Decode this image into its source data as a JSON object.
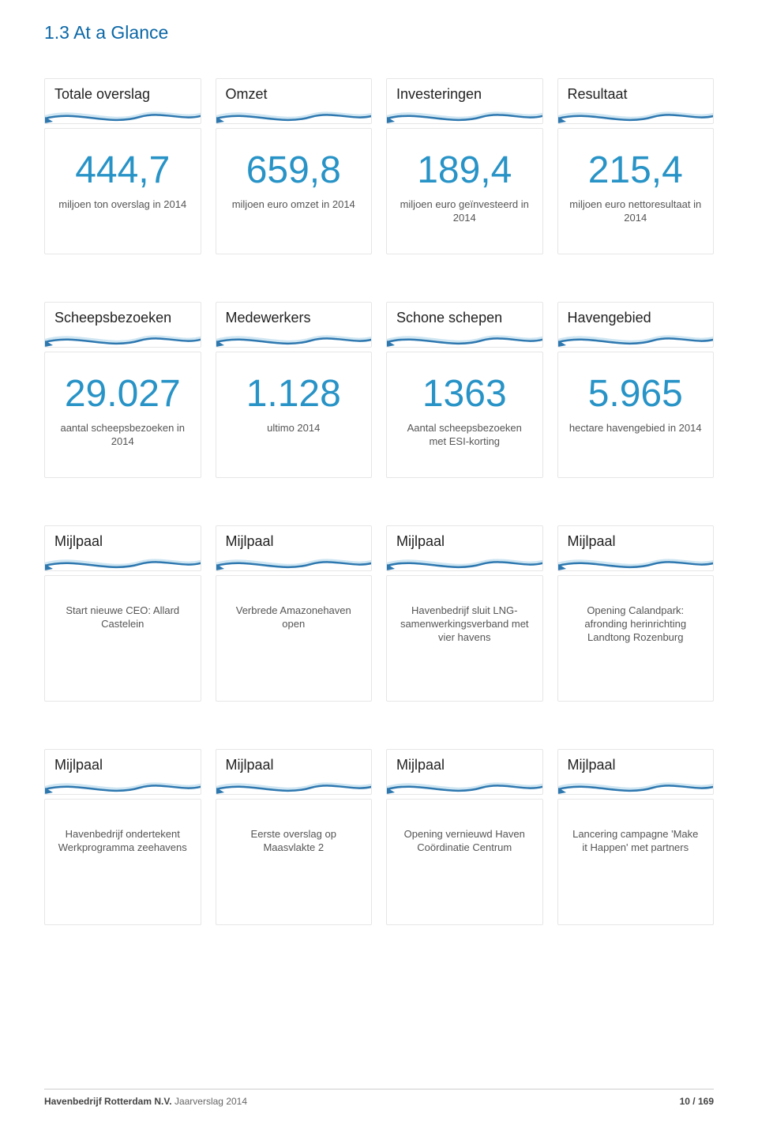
{
  "colors": {
    "accent": "#2893c6",
    "heading": "#0b67a6",
    "wave_dark": "#2e78b0",
    "wave_light": "#cfe6f2",
    "border": "#e6e6e6",
    "text": "#555555"
  },
  "section_title": "1.3  At a Glance",
  "rows": [
    [
      {
        "title": "Totale overslag",
        "value": "444,7",
        "desc": "miljoen ton overslag in 2014"
      },
      {
        "title": "Omzet",
        "value": "659,8",
        "desc": "miljoen euro omzet in 2014"
      },
      {
        "title": "Investeringen",
        "value": "189,4",
        "desc": "miljoen euro geïnvesteerd in 2014"
      },
      {
        "title": "Resultaat",
        "value": "215,4",
        "desc": "miljoen euro nettoresultaat in 2014"
      }
    ],
    [
      {
        "title": "Scheepsbezoeken",
        "value": "29.027",
        "desc": "aantal scheepsbezoeken in 2014"
      },
      {
        "title": "Medewerkers",
        "value": "1.128",
        "desc": "ultimo 2014"
      },
      {
        "title": "Schone schepen",
        "value": "1363",
        "desc": "Aantal scheepsbezoeken met ESI-korting"
      },
      {
        "title": "Havengebied",
        "value": "5.965",
        "desc": "hectare havengebied in 2014"
      }
    ],
    [
      {
        "title": "Mijlpaal",
        "desc": "Start nieuwe CEO: Allard Castelein"
      },
      {
        "title": "Mijlpaal",
        "desc": "Verbrede Amazonehaven open"
      },
      {
        "title": "Mijlpaal",
        "desc": "Havenbedrijf sluit LNG-samenwerkingsverband met vier havens"
      },
      {
        "title": "Mijlpaal",
        "desc": "Opening Calandpark: afronding herinrichting Landtong Rozenburg"
      }
    ],
    [
      {
        "title": "Mijlpaal",
        "desc": "Havenbedrijf ondertekent Werkprogramma zeehavens"
      },
      {
        "title": "Mijlpaal",
        "desc": "Eerste overslag op Maasvlakte 2"
      },
      {
        "title": "Mijlpaal",
        "desc": "Opening vernieuwd Haven Coördinatie Centrum"
      },
      {
        "title": "Mijlpaal",
        "desc": "Lancering campagne 'Make it Happen' met partners"
      }
    ]
  ],
  "footer": {
    "company": "Havenbedrijf Rotterdam N.V.",
    "report": "Jaarverslag 2014",
    "page": "10 / 169"
  }
}
